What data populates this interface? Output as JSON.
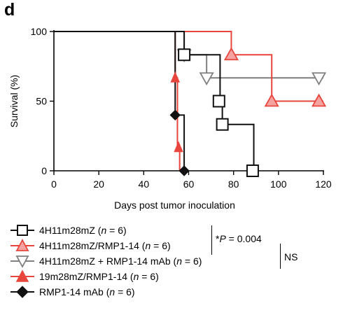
{
  "panel_label": "d",
  "chart_data": {
    "type": "line",
    "step": true,
    "xlabel": "Days post tumor inoculation",
    "ylabel": "Survival (%)",
    "xlim": [
      0,
      120
    ],
    "ylim": [
      0,
      100
    ],
    "xticks": [
      0,
      20,
      40,
      60,
      80,
      100,
      120
    ],
    "yticks": [
      0,
      50,
      100
    ],
    "grid": false,
    "legend_position": "bottom",
    "series": [
      {
        "name_main": "4H11m28mZ",
        "n_label": "n",
        "n_value": "= 6",
        "color": "#111111",
        "marker": "square-open",
        "x": [
          0,
          58,
          74,
          75,
          89
        ],
        "y": [
          100,
          83.3,
          50,
          33.3,
          0
        ],
        "markers_x": [
          58,
          73.5,
          75,
          88.5
        ],
        "markers_y": [
          83.3,
          50,
          33.3,
          0
        ]
      },
      {
        "name_main": "4H11m28mZ/RMP1-14",
        "n_label": "n",
        "n_value": "= 6",
        "color": "#e8453c",
        "marker": "triangle-up-light",
        "x": [
          0,
          79,
          97,
          120
        ],
        "y": [
          100,
          83.3,
          50,
          50
        ],
        "markers_x": [
          79,
          97,
          118
        ],
        "markers_y": [
          83.3,
          50,
          50
        ]
      },
      {
        "name_main": "4H11m28mZ + RMP1-14 mAb",
        "n_label": "n",
        "n_value": "= 6",
        "color": "#7f7f7f",
        "marker": "triangle-down-open",
        "x": [
          0,
          58,
          68,
          120
        ],
        "y": [
          100,
          83.3,
          66.7,
          66.7
        ],
        "markers_x": [
          58,
          68,
          118
        ],
        "markers_y": [
          83.3,
          66.7,
          66.7
        ]
      },
      {
        "name_main": "19m28mZ/RMP1-14",
        "n_label": "n",
        "n_value": "= 6",
        "color": "#e8453c",
        "marker": "triangle-up-filled",
        "x": [
          0,
          54,
          55,
          56
        ],
        "y": [
          100,
          66.7,
          16.7,
          0
        ],
        "markers_x": [
          54,
          55.5
        ],
        "markers_y": [
          66.7,
          16.7
        ]
      },
      {
        "name_main": "RMP1-14 mAb",
        "n_label": "n",
        "n_value": "= 6",
        "color": "#111111",
        "marker": "diamond-filled",
        "x": [
          0,
          54,
          58
        ],
        "y": [
          100,
          40,
          0
        ],
        "markers_x": [
          54,
          58
        ],
        "markers_y": [
          40,
          0
        ]
      }
    ]
  },
  "stats": {
    "p_prefix": "*",
    "p_symbol": "P",
    "p_rest": " = 0.004",
    "ns": "NS"
  }
}
